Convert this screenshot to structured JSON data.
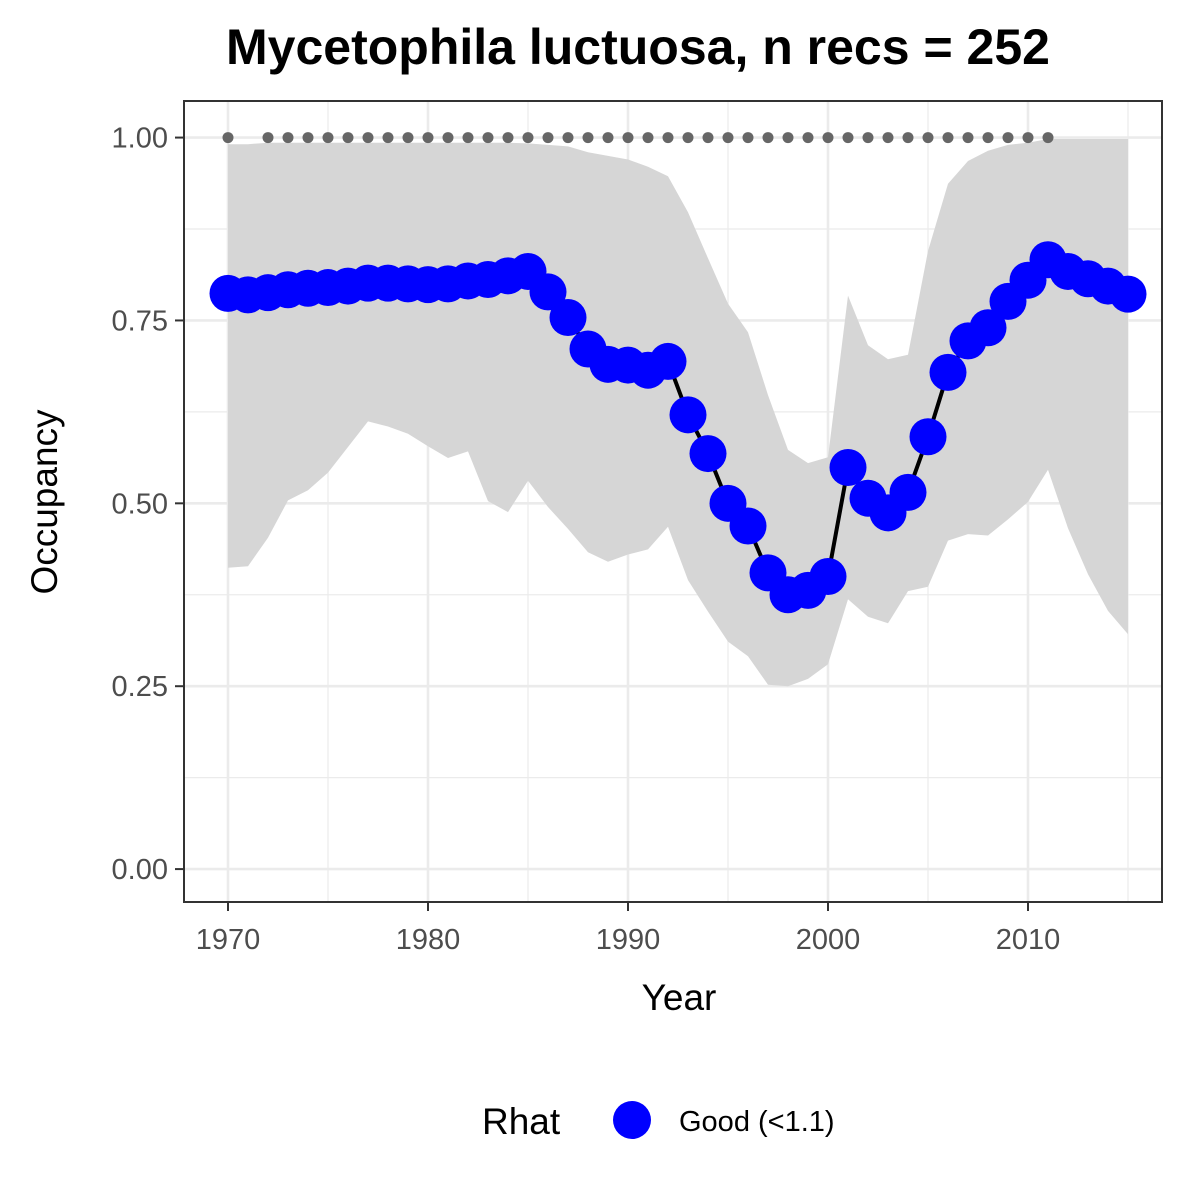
{
  "chart_data": {
    "type": "line",
    "title": "Mycetophila luctuosa, n recs = 252",
    "xlabel": "Year",
    "ylabel": "Occupancy",
    "xlim": [
      1967.8,
      2016.7
    ],
    "ylim": [
      -0.045,
      1.05
    ],
    "x_ticks": [
      1970,
      1980,
      1990,
      2000,
      2010
    ],
    "x_tick_labels": [
      "1970",
      "1980",
      "1990",
      "2000",
      "2010"
    ],
    "y_ticks": [
      0,
      0.25,
      0.5,
      0.75,
      1.0
    ],
    "y_tick_labels": [
      "0.00",
      "0.25",
      "0.50",
      "0.75",
      "1.00"
    ],
    "grid": true,
    "legend": {
      "title": "Rhat",
      "position": "bottom",
      "entries": [
        {
          "label": "Good (<1.1)",
          "color": "#0000ff"
        }
      ]
    },
    "colors": {
      "points": "#0000ff",
      "line": "#000000",
      "ribbon": "#d6d6d6",
      "record_dots": "#666666",
      "grid": "#ebebeb",
      "panel_border": "#333333"
    },
    "series": [
      {
        "x": [
          1970,
          1971,
          1972,
          1973,
          1974,
          1975,
          1976,
          1977,
          1978,
          1979,
          1980,
          1981,
          1982,
          1983,
          1984,
          1985,
          1986,
          1987,
          1988,
          1989,
          1990,
          1991,
          1992,
          1993,
          1994,
          1995,
          1996,
          1997,
          1998,
          1999,
          2000,
          2001,
          2002,
          2003,
          2004,
          2005,
          2006,
          2007,
          2008,
          2009,
          2010,
          2011,
          2012,
          2013,
          2014,
          2015
        ],
        "y": [
          0.787,
          0.785,
          0.788,
          0.792,
          0.794,
          0.795,
          0.797,
          0.801,
          0.801,
          0.8,
          0.799,
          0.8,
          0.804,
          0.806,
          0.811,
          0.817,
          0.789,
          0.754,
          0.711,
          0.69,
          0.689,
          0.682,
          0.694,
          0.621,
          0.568,
          0.5,
          0.469,
          0.405,
          0.375,
          0.381,
          0.4,
          0.549,
          0.507,
          0.487,
          0.515,
          0.591,
          0.679,
          0.722,
          0.74,
          0.776,
          0.805,
          0.833,
          0.817,
          0.807,
          0.797,
          0.786
        ],
        "lower": [
          0.412,
          0.414,
          0.453,
          0.504,
          0.518,
          0.542,
          0.577,
          0.612,
          0.605,
          0.595,
          0.578,
          0.562,
          0.571,
          0.503,
          0.488,
          0.531,
          0.495,
          0.465,
          0.433,
          0.42,
          0.43,
          0.437,
          0.468,
          0.395,
          0.352,
          0.311,
          0.291,
          0.252,
          0.25,
          0.26,
          0.28,
          0.369,
          0.345,
          0.336,
          0.38,
          0.386,
          0.449,
          0.458,
          0.456,
          0.478,
          0.502,
          0.546,
          0.466,
          0.403,
          0.353,
          0.321
        ],
        "upper": [
          0.991,
          0.991,
          0.993,
          0.993,
          0.993,
          0.993,
          0.993,
          0.993,
          0.993,
          0.993,
          0.993,
          0.993,
          0.993,
          0.993,
          0.993,
          0.992,
          0.99,
          0.988,
          0.98,
          0.975,
          0.97,
          0.96,
          0.947,
          0.898,
          0.835,
          0.773,
          0.734,
          0.648,
          0.573,
          0.555,
          0.563,
          0.784,
          0.716,
          0.697,
          0.703,
          0.845,
          0.937,
          0.968,
          0.982,
          0.99,
          0.993,
          0.998,
          0.998,
          0.998,
          0.998,
          0.998
        ]
      }
    ],
    "record_years": [
      1970,
      1972,
      1973,
      1974,
      1975,
      1976,
      1977,
      1978,
      1979,
      1980,
      1981,
      1982,
      1983,
      1984,
      1985,
      1986,
      1987,
      1988,
      1989,
      1990,
      1991,
      1992,
      1993,
      1994,
      1995,
      1996,
      1997,
      1998,
      1999,
      2000,
      2001,
      2002,
      2003,
      2004,
      2005,
      2006,
      2007,
      2008,
      2009,
      2010,
      2011
    ],
    "record_y": 1.0
  }
}
